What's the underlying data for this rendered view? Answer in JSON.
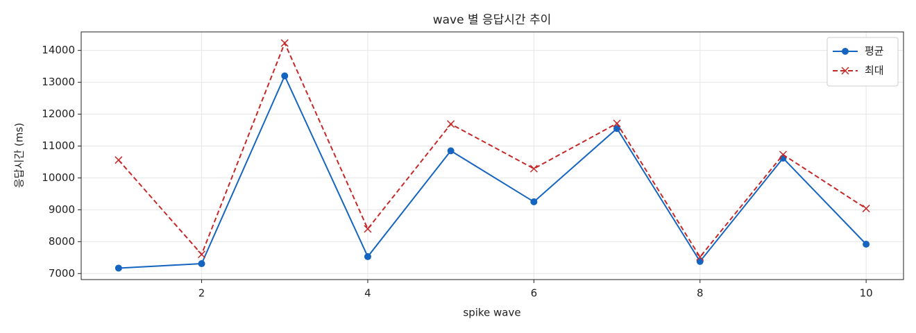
{
  "chart_data": {
    "type": "line",
    "title": "wave 별 응답시간 추이",
    "xlabel": "spike wave",
    "ylabel": "응답시간 (ms)",
    "x": [
      1,
      2,
      3,
      4,
      5,
      6,
      7,
      8,
      9,
      10
    ],
    "series": [
      {
        "name": "평균",
        "color": "#1565c0",
        "linestyle": "solid",
        "marker": "o",
        "values": [
          7170,
          7310,
          13200,
          7530,
          10850,
          9250,
          11550,
          7380,
          10620,
          7920
        ]
      },
      {
        "name": "최대",
        "color": "#c62828",
        "linestyle": "dashed",
        "marker": "x",
        "values": [
          10560,
          7600,
          14230,
          8400,
          11690,
          10290,
          11710,
          7520,
          10730,
          9040
        ]
      }
    ],
    "xlim": [
      0.55,
      10.45
    ],
    "ylim": [
      6810,
      14580
    ],
    "xticks": [
      2,
      4,
      6,
      8,
      10
    ],
    "yticks": [
      7000,
      8000,
      9000,
      10000,
      11000,
      12000,
      13000,
      14000
    ],
    "grid": true,
    "legend": "upper right"
  }
}
